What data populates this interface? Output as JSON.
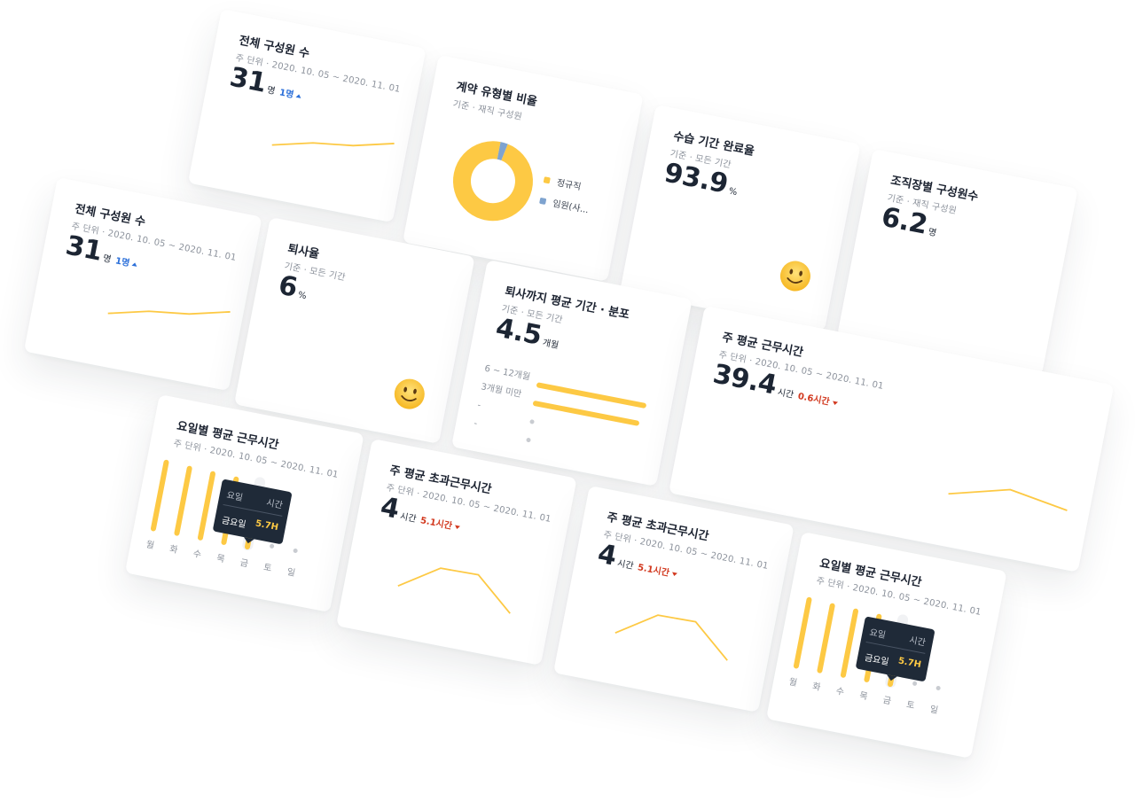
{
  "cards": [
    {
      "kind": "stat",
      "title": "전체 구성원 수",
      "subtitle": "주 단위 · 2020. 10. 05 ~ 2020. 11. 01",
      "value": 31,
      "unit": "명",
      "delta": {
        "label": "1명",
        "direction": "up"
      },
      "trend": [
        1,
        1.4,
        1.6,
        2
      ]
    },
    {
      "kind": "donut",
      "title": "계약 유형별 비율",
      "subtitle": "기준 · 재직 구성원",
      "segments": [
        {
          "name": "정규직",
          "value": 97,
          "color": "#fdc944"
        },
        {
          "name": "임원(사...",
          "value": 3,
          "color": "#7ea3cf"
        }
      ]
    },
    {
      "kind": "stat",
      "title": "수습 기간 완료율",
      "subtitle": "기준 · 모든 기간",
      "value": 93.9,
      "unit": "%",
      "icon": "smile"
    },
    {
      "kind": "stat",
      "title": "조직장별 구성원수",
      "subtitle": "기준 · 재직 구성원",
      "value": 6.2,
      "unit": "명"
    },
    {
      "kind": "stat",
      "title": "전체 구성원 수",
      "subtitle": "주 단위 · 2020. 10. 05 ~ 2020. 11. 01",
      "value": 31,
      "unit": "명",
      "delta": {
        "label": "1명",
        "direction": "up"
      },
      "trend": [
        1,
        1.4,
        1.6,
        2
      ]
    },
    {
      "kind": "stat",
      "title": "퇴사율",
      "subtitle": "기준 · 모든 기간",
      "value": 6,
      "unit": "%",
      "icon": "smile"
    },
    {
      "kind": "distribution",
      "title": "퇴사까지 평균 기간 · 분포",
      "subtitle": "기준 · 모든 기간",
      "value": 4.5,
      "unit": "개월",
      "rows": [
        {
          "label": "6 ~ 12개월",
          "value": 60
        },
        {
          "label": "3개월 미만",
          "value": 58
        },
        {
          "label": "-",
          "value": 0
        },
        {
          "label": "-",
          "value": 0
        }
      ]
    },
    {
      "kind": "stat",
      "title": "주 평균 근무시간",
      "subtitle": "주 단위 · 2020. 10. 05 ~ 2020. 11. 01",
      "value": 39.4,
      "unit": "시간",
      "delta": {
        "label": "0.6시간",
        "direction": "down"
      },
      "trend": [
        1.0,
        2.0,
        1.4
      ]
    },
    {
      "kind": "weekday",
      "title": "요일별 평균 근무시간",
      "subtitle": "주 단위 · 2020. 10. 05 ~ 2020. 11. 01",
      "categories": [
        "월",
        "화",
        "수",
        "목",
        "금",
        "토",
        "일"
      ],
      "values": [
        8.6,
        8.4,
        8.3,
        8.2,
        5.7,
        0,
        0
      ],
      "tooltip": {
        "header": [
          "요일",
          "시간"
        ],
        "day": "금요일",
        "value": 5.7,
        "label": "5.7H"
      }
    },
    {
      "kind": "stat",
      "title": "주 평균 초과근무시간",
      "subtitle": "주 단위 · 2020. 10. 05 ~ 2020. 11. 01",
      "value": 4,
      "unit": "시간",
      "delta": {
        "label": "5.1시간",
        "direction": "down"
      },
      "trend": [
        1.2,
        3.0,
        3.05,
        0.8
      ]
    },
    {
      "kind": "stat",
      "title": "주 평균 초과근무시간",
      "subtitle": "주 단위 · 2020. 10. 05 ~ 2020. 11. 01",
      "value": 4,
      "unit": "시간",
      "delta": {
        "label": "5.1시간",
        "direction": "down"
      },
      "trend": [
        1.2,
        3.0,
        3.05,
        0.8
      ]
    },
    {
      "kind": "weekday",
      "title": "요일별 평균 근무시간",
      "subtitle": "주 단위 · 2020. 10. 05 ~ 2020. 11. 01",
      "categories": [
        "월",
        "화",
        "수",
        "목",
        "금",
        "토",
        "일"
      ],
      "values": [
        8.6,
        8.4,
        8.3,
        8.2,
        5.7,
        0,
        0
      ],
      "tooltip": {
        "header": [
          "요일",
          "시간"
        ],
        "day": "금요일",
        "value": 5.7,
        "label": "5.7H"
      }
    }
  ]
}
